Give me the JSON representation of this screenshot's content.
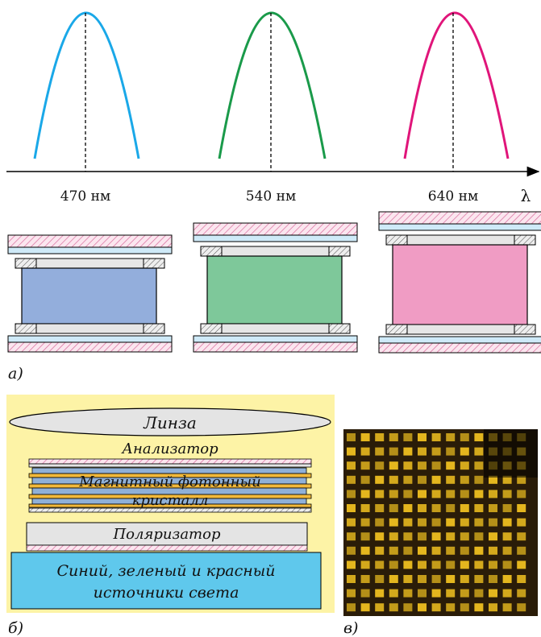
{
  "spectra": {
    "peaks": [
      {
        "wavelength": "470 нм",
        "color": "#1aa8e8"
      },
      {
        "wavelength": "540 нм",
        "color": "#1a9a4a"
      },
      {
        "wavelength": "640 нм",
        "color": "#e0157a"
      }
    ],
    "axis_symbol": "λ"
  },
  "cells": [
    {
      "fill": "#93aedc"
    },
    {
      "fill": "#7ec89a"
    },
    {
      "fill": "#f09cc4"
    }
  ],
  "labels": {
    "a": "а)",
    "b": "б)",
    "c": "в)"
  },
  "stack": {
    "lens": "Линза",
    "analyzer": "Анализатор",
    "crystal_line1": "Магнитный фотонный",
    "crystal_line2": "кристалл",
    "polarizer": "Поляризатор",
    "source_line1": "Синий, зеленый и красный",
    "source_line2": "источники света",
    "panel_color": "#fdf3a6",
    "source_color": "#5fc8ec"
  },
  "micrograph": {
    "pixel_color": "#f0c020",
    "background": "#2a1c08"
  }
}
